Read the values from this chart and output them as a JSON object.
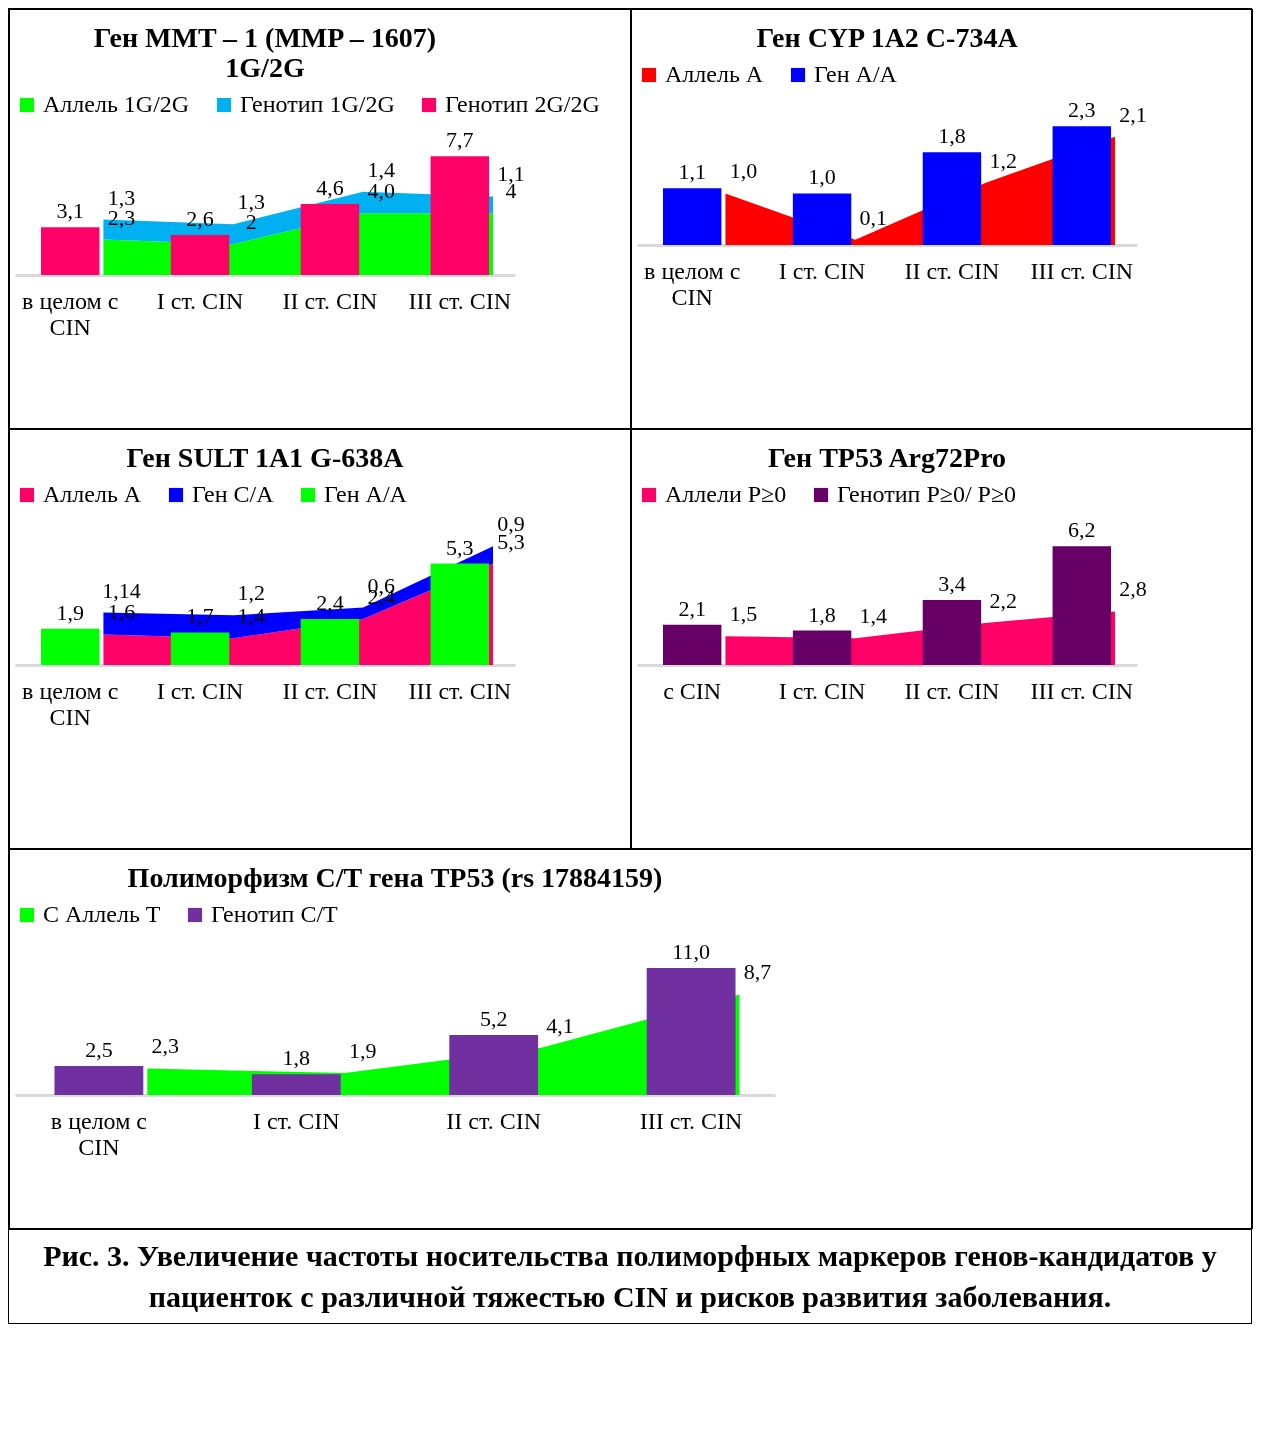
{
  "chart_data": [
    {
      "type": "area",
      "title": "Ген MMT – 1 (MMP – 1607) 1G/2G",
      "categories": [
        "в целом с CIN",
        "I ст. CIN",
        "II ст. CIN",
        "III ст. CIN"
      ],
      "stacked": true,
      "legend": "top",
      "series": [
        {
          "name": "Аллель 1G/2G",
          "color": "#00ff00",
          "values": [
            2.3,
            2,
            4.0,
            4
          ],
          "value_labels": [
            "2,3",
            "2",
            "4,0",
            "4"
          ]
        },
        {
          "name": "Генотип 1G/2G",
          "color": "#00b0f0",
          "values": [
            1.3,
            1.3,
            1.4,
            1.1
          ],
          "value_labels": [
            "1,3",
            "1,3",
            "1,4",
            "1,1"
          ]
        },
        {
          "name": "Генотип 2G/2G",
          "type": "bar",
          "color": "#ff0066",
          "values": [
            3.1,
            2.6,
            4.6,
            7.7
          ],
          "value_labels": [
            "3,1",
            "2,6",
            "4,6",
            "7,7"
          ]
        }
      ]
    },
    {
      "type": "area",
      "title": "Ген CYP 1A2 C-734A",
      "categories": [
        "в целом с CIN",
        "I ст. CIN",
        "II ст. CIN",
        "III ст. CIN"
      ],
      "legend": "top",
      "series": [
        {
          "name": "Аллель A",
          "color": "#ff0000",
          "values": [
            1.0,
            0.1,
            1.2,
            2.1
          ],
          "value_labels": [
            "1,0",
            "0,1",
            "1,2",
            "2,1"
          ]
        },
        {
          "name": "Ген A/A",
          "type": "bar",
          "color": "#0000ff",
          "values": [
            1.1,
            1.0,
            1.8,
            2.3
          ],
          "value_labels": [
            "1,1",
            "1,0",
            "1,8",
            "2,3"
          ]
        }
      ]
    },
    {
      "type": "area",
      "title": "Ген SULT 1A1 G-638A",
      "categories": [
        "в целом с CIN",
        "I ст. CIN",
        "II ст. CIN",
        "III ст. CIN"
      ],
      "stacked": true,
      "legend": "top",
      "series": [
        {
          "name": "Аллель A",
          "color": "#ff0066",
          "values": [
            1.6,
            1.4,
            2.4,
            5.3
          ],
          "value_labels": [
            "1,6",
            "1,4",
            "2,4",
            "5,3"
          ]
        },
        {
          "name": "Ген C/A",
          "color": "#0000ff",
          "values": [
            1.14,
            1.2,
            0.6,
            0.9
          ],
          "value_labels": [
            "1,14",
            "1,2",
            "0,6",
            "0,9"
          ]
        },
        {
          "name": "Ген A/A",
          "type": "bar",
          "color": "#00ff00",
          "values": [
            1.9,
            1.7,
            2.4,
            5.3
          ],
          "value_labels": [
            "1,9",
            "1,7",
            "2,4",
            "5,3"
          ]
        }
      ]
    },
    {
      "type": "area",
      "title": "Ген TP53 Arg72Pro",
      "categories": [
        "с CIN",
        "I ст. CIN",
        "II ст. CIN",
        "III ст. CIN"
      ],
      "legend": "top",
      "series": [
        {
          "name": "Аллели P≥0",
          "color": "#ff0066",
          "values": [
            1.5,
            1.4,
            2.2,
            2.8
          ],
          "value_labels": [
            "1,5",
            "1,4",
            "2,2",
            "2,8"
          ]
        },
        {
          "name": "Генотип P≥0/ P≥0",
          "type": "bar",
          "color": "#660066",
          "values": [
            2.1,
            1.8,
            3.4,
            6.2
          ],
          "value_labels": [
            "2,1",
            "1,8",
            "3,4",
            "6,2"
          ]
        }
      ]
    },
    {
      "type": "area",
      "title": "Полиморфизм C/T гена TP53 (rs 17884159)",
      "categories": [
        "в целом с CIN",
        "I ст. CIN",
        "II ст. CIN",
        "III ст. CIN"
      ],
      "legend": "top",
      "annotations": [
        "Рис. 3. Увеличение частоты носительства полиморфных маркеров генов-кандидатов у пациенток с различной тяжестью CIN и рисков развития заболевания."
      ],
      "series": [
        {
          "name": "C Аллель T",
          "color": "#00ff00",
          "values": [
            2.3,
            1.9,
            4.1,
            8.7
          ],
          "value_labels": [
            "2,3",
            "1,9",
            "4,1",
            "8,7"
          ]
        },
        {
          "name": "Генотип C/T",
          "type": "bar",
          "color": "#7030a0",
          "values": [
            2.5,
            1.8,
            5.2,
            11.0
          ],
          "value_labels": [
            "2,5",
            "1,8",
            "5,2",
            "11,0"
          ]
        }
      ]
    }
  ]
}
